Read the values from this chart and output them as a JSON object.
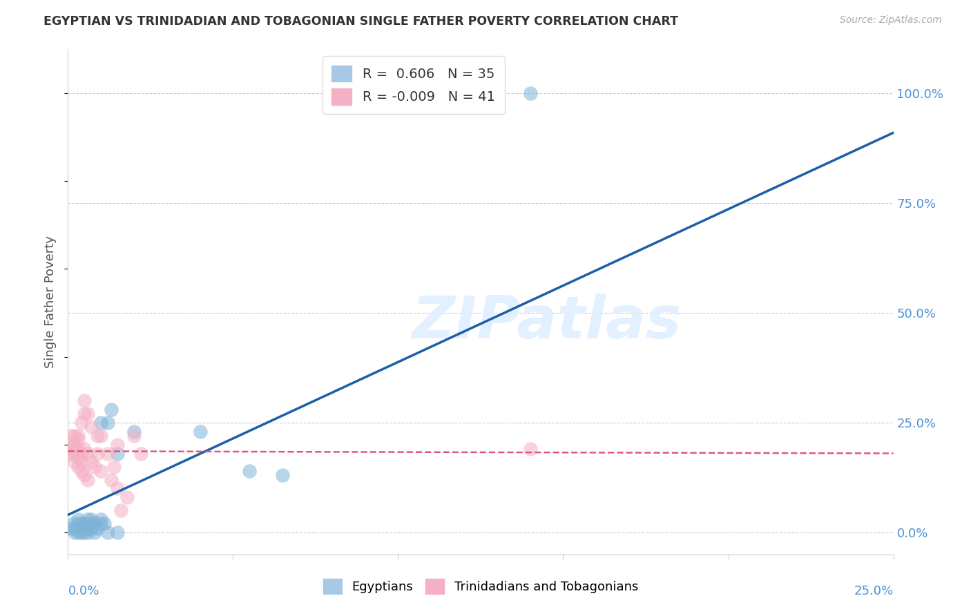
{
  "title": "EGYPTIAN VS TRINIDADIAN AND TOBAGONIAN SINGLE FATHER POVERTY CORRELATION CHART",
  "source": "Source: ZipAtlas.com",
  "ylabel": "Single Father Poverty",
  "watermark": "ZIPatlas",
  "xlim": [
    0.0,
    25.0
  ],
  "ylim": [
    -5.0,
    110.0
  ],
  "ytick_positions": [
    0.0,
    25.0,
    50.0,
    75.0,
    100.0
  ],
  "xtick_positions": [
    0.0,
    5.0,
    10.0,
    15.0,
    20.0,
    25.0
  ],
  "egyptian_color": "#7eb3d8",
  "trinidadian_color": "#f4b0c4",
  "blue_line_color": "#1a5fa8",
  "pink_line_color": "#e05878",
  "background_color": "#ffffff",
  "grid_color": "#cccccc",
  "title_color": "#333333",
  "axis_label_color": "#4a90d9",
  "egyptians_scatter": [
    [
      0.1,
      1.0
    ],
    [
      0.15,
      2.0
    ],
    [
      0.2,
      0.0
    ],
    [
      0.2,
      1.0
    ],
    [
      0.3,
      0.0
    ],
    [
      0.3,
      2.0
    ],
    [
      0.3,
      3.0
    ],
    [
      0.4,
      0.0
    ],
    [
      0.4,
      1.0
    ],
    [
      0.4,
      2.0
    ],
    [
      0.5,
      0.0
    ],
    [
      0.5,
      2.0
    ],
    [
      0.6,
      0.0
    ],
    [
      0.6,
      1.0
    ],
    [
      0.6,
      3.0
    ],
    [
      0.7,
      1.0
    ],
    [
      0.7,
      2.0
    ],
    [
      0.7,
      3.0
    ],
    [
      0.8,
      0.0
    ],
    [
      0.8,
      2.0
    ],
    [
      0.9,
      1.0
    ],
    [
      1.0,
      2.0
    ],
    [
      1.0,
      3.0
    ],
    [
      1.0,
      25.0
    ],
    [
      1.1,
      2.0
    ],
    [
      1.2,
      0.0
    ],
    [
      1.2,
      25.0
    ],
    [
      1.3,
      28.0
    ],
    [
      1.5,
      0.0
    ],
    [
      1.5,
      18.0
    ],
    [
      2.0,
      23.0
    ],
    [
      4.0,
      23.0
    ],
    [
      5.5,
      14.0
    ],
    [
      6.5,
      13.0
    ],
    [
      14.0,
      100.0
    ]
  ],
  "trinidadian_scatter": [
    [
      0.1,
      19.0
    ],
    [
      0.1,
      20.0
    ],
    [
      0.1,
      22.0
    ],
    [
      0.1,
      18.0
    ],
    [
      0.2,
      16.0
    ],
    [
      0.2,
      18.0
    ],
    [
      0.2,
      20.0
    ],
    [
      0.2,
      22.0
    ],
    [
      0.3,
      15.0
    ],
    [
      0.3,
      17.0
    ],
    [
      0.3,
      19.0
    ],
    [
      0.3,
      21.0
    ],
    [
      0.3,
      22.0
    ],
    [
      0.4,
      14.0
    ],
    [
      0.4,
      16.0
    ],
    [
      0.4,
      18.0
    ],
    [
      0.4,
      25.0
    ],
    [
      0.5,
      13.0
    ],
    [
      0.5,
      19.0
    ],
    [
      0.5,
      27.0
    ],
    [
      0.5,
      30.0
    ],
    [
      0.6,
      12.0
    ],
    [
      0.6,
      18.0
    ],
    [
      0.6,
      27.0
    ],
    [
      0.7,
      16.0
    ],
    [
      0.7,
      24.0
    ],
    [
      0.8,
      15.0
    ],
    [
      0.9,
      22.0
    ],
    [
      0.9,
      18.0
    ],
    [
      1.0,
      14.0
    ],
    [
      1.0,
      22.0
    ],
    [
      1.2,
      18.0
    ],
    [
      1.3,
      12.0
    ],
    [
      1.4,
      15.0
    ],
    [
      1.5,
      10.0
    ],
    [
      1.5,
      20.0
    ],
    [
      1.6,
      5.0
    ],
    [
      1.8,
      8.0
    ],
    [
      2.0,
      22.0
    ],
    [
      2.2,
      18.0
    ],
    [
      14.0,
      19.0
    ]
  ],
  "egyptian_line": {
    "x0": 0.0,
    "y0": 4.0,
    "x1": 25.0,
    "y1": 91.0
  },
  "trinidadian_line": {
    "x0": 0.0,
    "y0": 18.5,
    "x1": 25.0,
    "y1": 18.0
  },
  "legend1_label_r": "0.606",
  "legend1_label_n": "35",
  "legend2_label_r": "-0.009",
  "legend2_label_n": "41",
  "bottom_label1": "Egyptians",
  "bottom_label2": "Trinidadians and Tobagonians"
}
